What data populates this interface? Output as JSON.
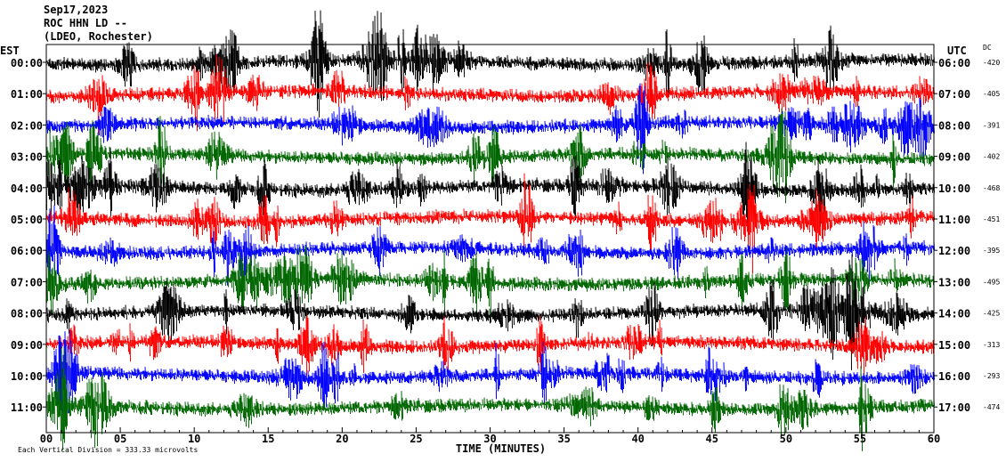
{
  "header": {
    "date": "Sep17,2023",
    "station": "ROC HHN LD --",
    "location": "(LDEO, Rochester)"
  },
  "colors": {
    "cycle": [
      "#000000",
      "#ff0000",
      "#0000ff",
      "#006600"
    ]
  },
  "chart_data": {
    "type": "line",
    "title": "",
    "xlabel": "TIME (MINUTES)",
    "ylabel": "",
    "xlim": [
      0,
      60
    ],
    "x_ticks": [
      "00",
      "05",
      "10",
      "15",
      "20",
      "25",
      "30",
      "35",
      "40",
      "45",
      "50",
      "55",
      "60"
    ],
    "left_axis_label": "EST",
    "right_axis_label": "UTC",
    "dc_label": "DC",
    "rows": [
      {
        "est": "00:00",
        "utc": "06:00",
        "dc": "-420"
      },
      {
        "est": "01:00",
        "utc": "07:00",
        "dc": "-405"
      },
      {
        "est": "02:00",
        "utc": "08:00",
        "dc": "-391"
      },
      {
        "est": "03:00",
        "utc": "09:00",
        "dc": "-402"
      },
      {
        "est": "04:00",
        "utc": "10:00",
        "dc": "-468"
      },
      {
        "est": "05:00",
        "utc": "11:00",
        "dc": "-451"
      },
      {
        "est": "06:00",
        "utc": "12:00",
        "dc": "-395"
      },
      {
        "est": "07:00",
        "utc": "13:00",
        "dc": "-495"
      },
      {
        "est": "08:00",
        "utc": "14:00",
        "dc": "-425"
      },
      {
        "est": "09:00",
        "utc": "15:00",
        "dc": "-313"
      },
      {
        "est": "10:00",
        "utc": "16:00",
        "dc": "-293"
      },
      {
        "est": "11:00",
        "utc": "17:00",
        "dc": "-474"
      }
    ],
    "footnote": "Each Vertical Division = 333.33 microvolts",
    "grid": false
  }
}
